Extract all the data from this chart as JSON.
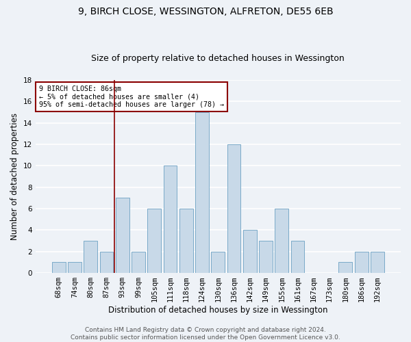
{
  "title1": "9, BIRCH CLOSE, WESSINGTON, ALFRETON, DE55 6EB",
  "title2": "Size of property relative to detached houses in Wessington",
  "xlabel": "Distribution of detached houses by size in Wessington",
  "ylabel": "Number of detached properties",
  "categories": [
    "68sqm",
    "74sqm",
    "80sqm",
    "87sqm",
    "93sqm",
    "99sqm",
    "105sqm",
    "111sqm",
    "118sqm",
    "124sqm",
    "130sqm",
    "136sqm",
    "142sqm",
    "149sqm",
    "155sqm",
    "161sqm",
    "167sqm",
    "173sqm",
    "180sqm",
    "186sqm",
    "192sqm"
  ],
  "values": [
    1,
    1,
    3,
    2,
    7,
    2,
    6,
    10,
    6,
    15,
    2,
    12,
    4,
    3,
    6,
    3,
    0,
    0,
    1,
    2,
    2
  ],
  "bar_color": "#c8d9e8",
  "bar_edge_color": "#7aaac8",
  "vline_x_index": 3,
  "vline_color": "#8b0000",
  "annotation_text": "9 BIRCH CLOSE: 86sqm\n← 5% of detached houses are smaller (4)\n95% of semi-detached houses are larger (78) →",
  "annotation_box_color": "#ffffff",
  "annotation_box_edge_color": "#8b0000",
  "ylim": [
    0,
    18
  ],
  "yticks": [
    0,
    2,
    4,
    6,
    8,
    10,
    12,
    14,
    16,
    18
  ],
  "footnote": "Contains HM Land Registry data © Crown copyright and database right 2024.\nContains public sector information licensed under the Open Government Licence v3.0.",
  "background_color": "#eef2f7",
  "grid_color": "#ffffff",
  "title1_fontsize": 10,
  "title2_fontsize": 9,
  "axis_label_fontsize": 8.5,
  "tick_fontsize": 7.5,
  "footnote_fontsize": 6.5
}
